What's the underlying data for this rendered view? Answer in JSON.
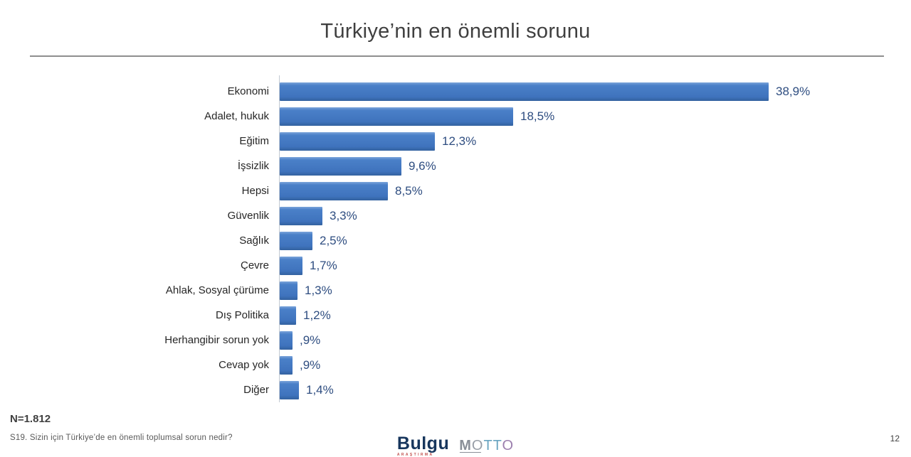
{
  "slide": {
    "title": "Türkiye’nin en önemli sorunu",
    "page_number": "12"
  },
  "chart_data": {
    "type": "bar",
    "orientation": "horizontal",
    "title": "Türkiye’nin en önemli sorunu",
    "categories": [
      "Ekonomi",
      "Adalet, hukuk",
      "Eğitim",
      "İşsizlik",
      "Hepsi",
      "Güvenlik",
      "Sağlık",
      "Çevre",
      "Ahlak, Sosyal çürüme",
      "Dış Politika",
      "Herhangibir sorun yok",
      "Cevap yok",
      "Diğer"
    ],
    "values": [
      38.9,
      18.5,
      12.3,
      9.6,
      8.5,
      3.3,
      2.5,
      1.7,
      1.3,
      1.2,
      0.9,
      0.9,
      1.4
    ],
    "value_labels": [
      "38,9%",
      "18,5%",
      "12,3%",
      "9,6%",
      "8,5%",
      "3,3%",
      "2,5%",
      "1,7%",
      "1,3%",
      "1,2%",
      ",9%",
      ",9%",
      "1,4%"
    ],
    "xlim": [
      0,
      40
    ],
    "grid": false,
    "legend": false,
    "bar_color": "#4076c4",
    "value_label_color": "#2e4d80",
    "category_label_color": "#262626"
  },
  "footer": {
    "sample_size": "N=1.812",
    "question": "S19. Sizin için Türkiye’de en önemli toplumsal sorun nedir?"
  },
  "logos": {
    "bulgu": {
      "text": "Bulgu",
      "subtext": "ARAŞTIRMA"
    },
    "motto": {
      "letters": [
        "M",
        "O",
        "T",
        "T",
        "O"
      ]
    }
  }
}
